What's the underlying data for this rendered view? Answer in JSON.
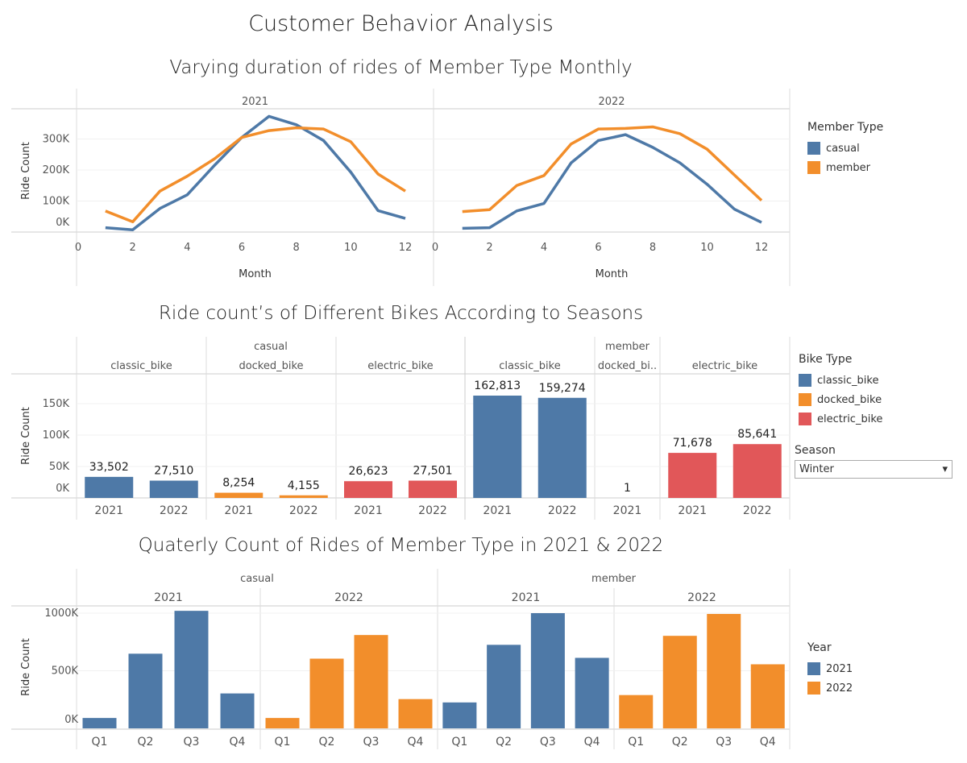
{
  "dashboard_title": "Customer Behavior Analysis",
  "colors": {
    "casual": "#4e79a7",
    "member": "#f28e2b",
    "classic_bike": "#4e79a7",
    "docked_bike": "#f28e2b",
    "electric_bike": "#e15759",
    "2021": "#4e79a7",
    "2022": "#f28e2b"
  },
  "chart_data": [
    {
      "type": "line",
      "title": "Varying duration of rides of Member Type Monthly",
      "xlabel": "Month",
      "ylabel": "Ride Count",
      "panels": [
        "2021",
        "2022"
      ],
      "x_ticks": [
        "0",
        "2",
        "4",
        "6",
        "8",
        "10",
        "12"
      ],
      "y_ticks": [
        "0K",
        "100K",
        "200K",
        "300K"
      ],
      "xlim": [
        0,
        12
      ],
      "ylim": [
        0,
        400000
      ],
      "grid": true,
      "legend": {
        "title": "Member Type",
        "position": "right",
        "entries": [
          "casual",
          "member"
        ]
      },
      "x": [
        1,
        2,
        3,
        4,
        5,
        6,
        7,
        8,
        9,
        10,
        11,
        12
      ],
      "series": [
        {
          "name": "casual",
          "panel": "2021",
          "values": [
            14000,
            7000,
            76000,
            120000,
            215000,
            305000,
            373000,
            346000,
            295000,
            193000,
            69000,
            44000
          ]
        },
        {
          "name": "member",
          "panel": "2021",
          "values": [
            68000,
            33000,
            132000,
            180000,
            236000,
            305000,
            327000,
            336000,
            332000,
            291000,
            187000,
            132000
          ]
        },
        {
          "name": "casual",
          "panel": "2022",
          "values": [
            12000,
            14000,
            68000,
            92000,
            223000,
            295000,
            314000,
            273000,
            223000,
            154000,
            74000,
            31000
          ]
        },
        {
          "name": "member",
          "panel": "2022",
          "values": [
            66000,
            72000,
            150000,
            182000,
            284000,
            332000,
            334000,
            339000,
            317000,
            267000,
            184000,
            102000
          ]
        }
      ]
    },
    {
      "type": "bar",
      "title": "Ride count’s of Different Bikes According to Seasons",
      "ylabel": "Ride Count",
      "y_ticks": [
        "0K",
        "50K",
        "100K",
        "150K"
      ],
      "ylim": [
        0,
        175000
      ],
      "grid": true,
      "legend": {
        "title": "Bike Type",
        "position": "right",
        "entries": [
          "classic_bike",
          "docked_bike",
          "electric_bike"
        ]
      },
      "filter": {
        "label": "Season",
        "value": "Winter"
      },
      "groups": [
        {
          "member": "casual",
          "panels": [
            {
              "bike": "classic_bike",
              "label": "classic_bike",
              "bars": [
                {
                  "year": "2021",
                  "value": 33502,
                  "text": "33,502"
                },
                {
                  "year": "2022",
                  "value": 27510,
                  "text": "27,510"
                }
              ]
            },
            {
              "bike": "docked_bike",
              "label": "docked_bike",
              "bars": [
                {
                  "year": "2021",
                  "value": 8254,
                  "text": "8,254"
                },
                {
                  "year": "2022",
                  "value": 4155,
                  "text": "4,155"
                }
              ]
            },
            {
              "bike": "electric_bike",
              "label": "electric_bike",
              "bars": [
                {
                  "year": "2021",
                  "value": 26623,
                  "text": "26,623"
                },
                {
                  "year": "2022",
                  "value": 27501,
                  "text": "27,501"
                }
              ]
            }
          ]
        },
        {
          "member": "member",
          "panels": [
            {
              "bike": "classic_bike",
              "label": "classic_bike",
              "bars": [
                {
                  "year": "2021",
                  "value": 162813,
                  "text": "162,813"
                },
                {
                  "year": "2022",
                  "value": 159274,
                  "text": "159,274"
                }
              ]
            },
            {
              "bike": "docked_bike",
              "label": "docked_bi..",
              "bars": [
                {
                  "year": "2021",
                  "value": 1,
                  "text": "1"
                }
              ]
            },
            {
              "bike": "electric_bike",
              "label": "electric_bike",
              "bars": [
                {
                  "year": "2021",
                  "value": 71678,
                  "text": "71,678"
                },
                {
                  "year": "2022",
                  "value": 85641,
                  "text": "85,641"
                }
              ]
            }
          ]
        }
      ]
    },
    {
      "type": "bar",
      "title": "Quaterly Count of Rides of Member Type in 2021 & 2022",
      "ylabel": "Ride Count",
      "y_ticks": [
        "0K",
        "500K",
        "1000K"
      ],
      "ylim": [
        0,
        1050000
      ],
      "grid": true,
      "legend": {
        "title": "Year",
        "position": "right",
        "entries": [
          "2021",
          "2022"
        ]
      },
      "categories": [
        "Q1",
        "Q2",
        "Q3",
        "Q4"
      ],
      "groups": [
        {
          "member": "casual",
          "years": [
            {
              "year": "2021",
              "values": [
                90000,
                648000,
                1020000,
                303000
              ]
            },
            {
              "year": "2022",
              "values": [
                90000,
                605000,
                810000,
                254000
              ]
            }
          ]
        },
        {
          "member": "member",
          "years": [
            {
              "year": "2021",
              "values": [
                225000,
                725000,
                1000000,
                612000
              ]
            },
            {
              "year": "2022",
              "values": [
                289000,
                803000,
                993000,
                556000
              ]
            }
          ]
        }
      ]
    }
  ]
}
